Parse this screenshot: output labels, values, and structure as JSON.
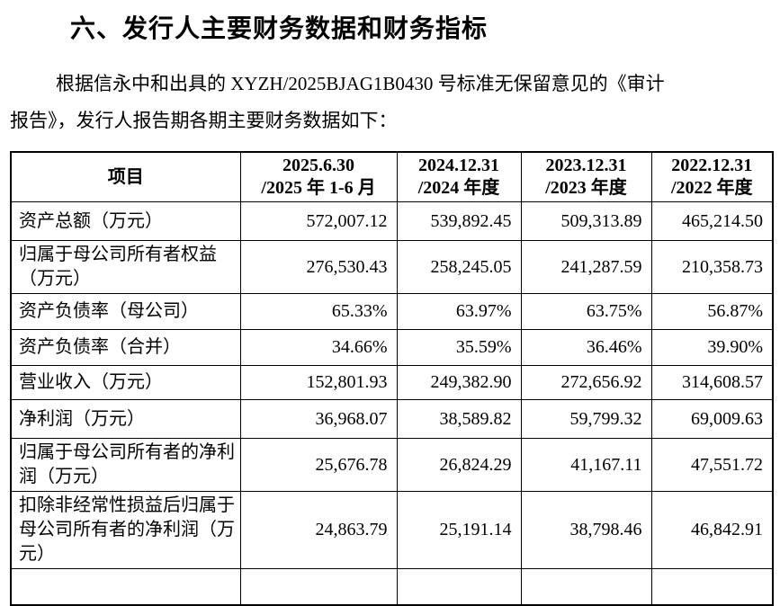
{
  "page": {
    "title": "六、发行人主要财务数据和财务指标",
    "paragraph_line1": "根据信永中和出具的 XYZH/2025BJAG1B0430 号标准无保留意见的《审计",
    "paragraph_line2": "报告》，发行人报告期各期主要财务数据如下："
  },
  "table": {
    "header": {
      "item_label": "项目",
      "periods": [
        {
          "line1": "2025.6.30",
          "line2": "/2025 年 1-6 月"
        },
        {
          "line1": "2024.12.31",
          "line2": "/2024 年度"
        },
        {
          "line1": "2023.12.31",
          "line2": "/2023 年度"
        },
        {
          "line1": "2022.12.31",
          "line2": "/2022 年度"
        }
      ]
    },
    "rows": [
      {
        "label": "资产总额（万元）",
        "values": [
          "572,007.12",
          "539,892.45",
          "509,313.89",
          "465,214.50"
        ]
      },
      {
        "label": "归属于母公司所有者权益（万元）",
        "values": [
          "276,530.43",
          "258,245.05",
          "241,287.59",
          "210,358.73"
        ]
      },
      {
        "label": "资产负债率（母公司）",
        "values": [
          "65.33%",
          "63.97%",
          "63.75%",
          "56.87%"
        ]
      },
      {
        "label": "资产负债率（合并）",
        "values": [
          "34.66%",
          "35.59%",
          "36.46%",
          "39.90%"
        ]
      },
      {
        "label": "营业收入（万元）",
        "values": [
          "152,801.93",
          "249,382.90",
          "272,656.92",
          "314,608.57"
        ]
      },
      {
        "label": "净利润（万元）",
        "values": [
          "36,968.07",
          "38,589.82",
          "59,799.32",
          "69,009.63"
        ]
      },
      {
        "label": "归属于母公司所有者的净利润（万元）",
        "values": [
          "25,676.78",
          "26,824.29",
          "41,167.11",
          "47,551.72"
        ]
      },
      {
        "label": "扣除非经常性损益后归属于母公司所有者的净利润（万元）",
        "values": [
          "24,863.79",
          "25,191.14",
          "38,798.46",
          "46,842.91"
        ]
      }
    ]
  }
}
